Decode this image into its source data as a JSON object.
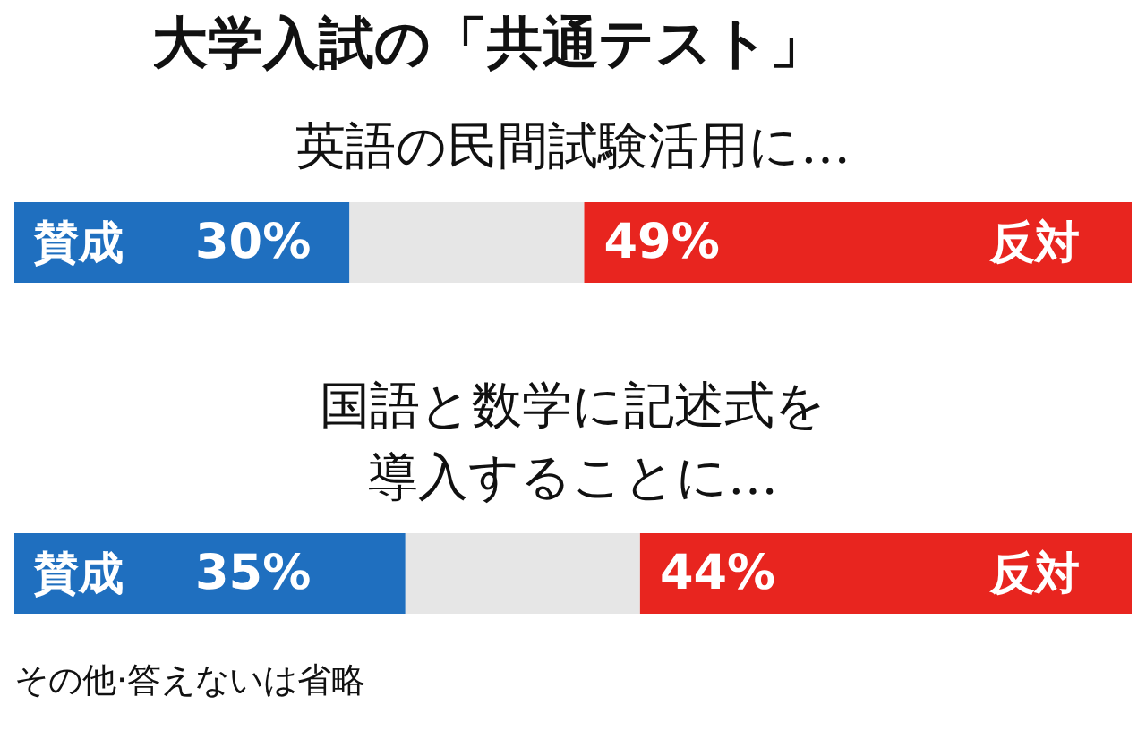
{
  "chart_data": {
    "type": "bar",
    "orientation": "horizontal",
    "stacked": true,
    "title": "大学入試の「共通テスト」",
    "categories": [
      "英語の民間試験活用に…",
      "国語と数学に記述式を導入することに…"
    ],
    "series": [
      {
        "name": "賛成",
        "color": "#1f6fbf",
        "values": [
          30,
          35
        ],
        "value_labels": [
          "30%",
          "35%"
        ]
      },
      {
        "color": "#e6e6e6",
        "values": [
          21,
          21
        ],
        "value_labels": [
          null,
          null
        ]
      },
      {
        "name": "反対",
        "color": "#e8251f",
        "values": [
          49,
          44
        ],
        "value_labels": [
          "49%",
          "44%"
        ]
      }
    ],
    "xlim": [
      0,
      100
    ],
    "tick_labels": "y",
    "grid": false,
    "legend": false,
    "annotations": [
      "その他·答えないは省略"
    ]
  }
}
